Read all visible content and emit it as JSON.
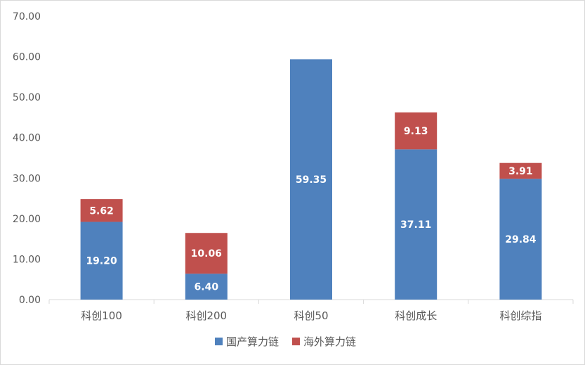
{
  "chart_data": {
    "type": "bar",
    "stacked": true,
    "categories": [
      "科创100",
      "科创200",
      "科创50",
      "科创成长",
      "科创综指"
    ],
    "series": [
      {
        "name": "国产算力链",
        "color": "#4F81BD",
        "values": [
          19.2,
          6.4,
          59.35,
          37.11,
          29.84
        ],
        "labels": [
          "19.20",
          "6.40",
          "59.35",
          "37.11",
          "29.84"
        ]
      },
      {
        "name": "海外算力链",
        "color": "#C0504D",
        "values": [
          5.62,
          10.06,
          null,
          9.13,
          3.91
        ],
        "labels": [
          "5.62",
          "10.06",
          "",
          "9.13",
          "3.91"
        ]
      }
    ],
    "ylim": [
      0,
      70
    ],
    "yticks": [
      "0.00",
      "10.00",
      "20.00",
      "30.00",
      "40.00",
      "50.00",
      "60.00",
      "70.00"
    ],
    "grid": false,
    "legend": "bottom",
    "title": "",
    "xlabel": "",
    "ylabel": ""
  }
}
